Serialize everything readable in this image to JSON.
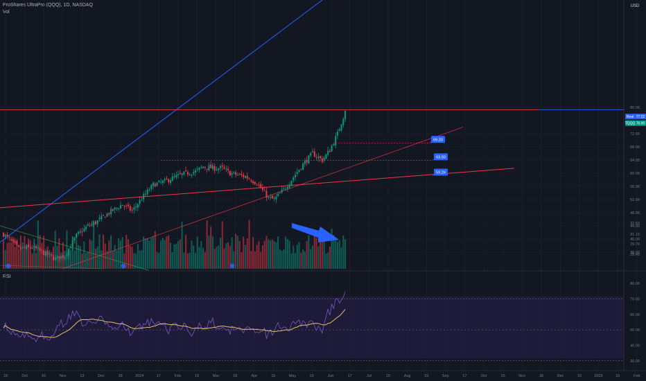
{
  "header": {
    "symbol_line": "ProShares UltraPro (QQQ), 1D, NASDAQ",
    "vol_label": "Vol",
    "rsi_label": "RSI"
  },
  "price_axis": {
    "currency": "USD",
    "ticks": [
      "80.00",
      "72.00",
      "68.00",
      "64.00",
      "60.00",
      "56.00",
      "52.00",
      "48.00",
      "44.00",
      "40.00",
      "36.00",
      "32.50",
      "31.10",
      "29.70",
      "28.40"
    ],
    "tags": [
      {
        "label": "Real",
        "value": "77.22",
        "color": "#2962ff"
      },
      {
        "label": "TQQQ",
        "value": "76.90",
        "color": "#089981"
      }
    ]
  },
  "rsi_axis": {
    "ticks": [
      "80.00",
      "70.00",
      "60.00",
      "50.00",
      "40.00",
      "30.00"
    ]
  },
  "time_axis": {
    "labels": [
      "18",
      "Oct",
      "16",
      "Nov",
      "13",
      "Dec",
      "18",
      "2024",
      "17",
      "Feb",
      "19",
      "Mar",
      "18",
      "Apr",
      "15",
      "May",
      "15",
      "Jun",
      "17",
      "Jul",
      "15",
      "Aug",
      "19",
      "Sep",
      "17",
      "Oct",
      "15",
      "Nov",
      "18",
      "Dec",
      "16",
      "2025",
      "16",
      "Feb"
    ]
  },
  "annotations": {
    "price_boxes": [
      "69.20",
      "63.93",
      "59.26"
    ]
  },
  "colors": {
    "up": "#089981",
    "down": "#f23645",
    "channel_upper": "#2962ff",
    "channel_lower": "#f23645",
    "rsi": "#7e57c2",
    "rsi_ma": "#e0c36b",
    "background": "#131722",
    "arrow": "#2962ff"
  },
  "chart_data": {
    "type": "candlestick",
    "series_start": "2023-09-18",
    "close_start": 41.5,
    "close_end": 78.9,
    "price_ylim": [
      28.4,
      82
    ],
    "rsi_ylim": [
      25,
      85
    ],
    "rsi_levels": [
      70,
      50,
      30
    ],
    "levels": [
      69.2,
      63.93,
      59.26
    ],
    "grid": true
  }
}
